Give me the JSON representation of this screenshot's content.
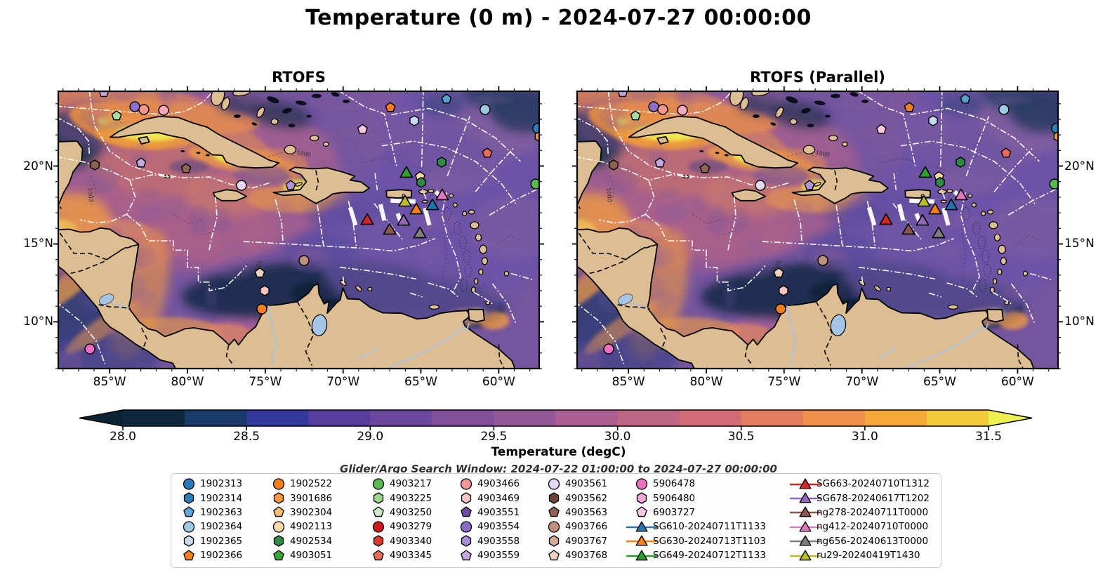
{
  "figure": {
    "title": "Temperature (0 m) - 2024-07-27 00:00:00",
    "background": "#ffffff"
  },
  "panels": [
    {
      "title": "RTOFS"
    },
    {
      "title": "RTOFS (Parallel)"
    }
  ],
  "map": {
    "extent": {
      "lon_min": -88.3,
      "lon_max": -57.4,
      "lat_min": 7.0,
      "lat_max": 24.8
    },
    "lon_ticks": [
      {
        "deg": -85,
        "label": "85°W"
      },
      {
        "deg": -80,
        "label": "80°W"
      },
      {
        "deg": -75,
        "label": "75°W"
      },
      {
        "deg": -70,
        "label": "70°W"
      },
      {
        "deg": -65,
        "label": "65°W"
      },
      {
        "deg": -60,
        "label": "60°W"
      }
    ],
    "lat_ticks": [
      {
        "deg": 20,
        "label": "20°N"
      },
      {
        "deg": 15,
        "label": "15°N"
      },
      {
        "deg": 10,
        "label": "10°N"
      }
    ],
    "colors": {
      "land": "#ddbe92",
      "lake_river": "#a5c4e6",
      "coastline": "#000000",
      "eez_boundary": "#ffffff",
      "sea_base": "#76559f",
      "contour": "#3a3a3a"
    },
    "contour_label": "1000"
  },
  "colorbar": {
    "label": "Temperature (degC)",
    "units": "degC",
    "vmin": 28.0,
    "vmax": 31.5,
    "step": 0.25,
    "tick_labels": [
      "28.0",
      "28.5",
      "29.0",
      "29.5",
      "30.0",
      "30.5",
      "31.0",
      "31.5"
    ],
    "under_color": "#0b2433",
    "over_color": "#edf04f",
    "segment_colors": [
      "#10293f",
      "#1a3a69",
      "#33399c",
      "#563d9e",
      "#6c479e",
      "#81509b",
      "#955897",
      "#aa5f92",
      "#bf6585",
      "#d26d75",
      "#e37d60",
      "#ef914b",
      "#f5a83a",
      "#f3ca3b"
    ]
  },
  "annotations": {
    "search_window": "Glider/Argo Search Window: 2024-07-22 01:00:00 to 2024-07-27 00:00:00"
  },
  "markers": {
    "argo": [
      {
        "shape": "pentagon",
        "color": "#c5a3e0",
        "lon": -85.37,
        "lat": 24.72
      },
      {
        "shape": "pentagon",
        "color": "#a8dfa0",
        "lon": -84.55,
        "lat": 23.22
      },
      {
        "shape": "circle",
        "color": "#8d6fc9",
        "lon": -83.38,
        "lat": 23.81
      },
      {
        "shape": "circle",
        "color": "#f2958d",
        "lon": -82.8,
        "lat": 23.63
      },
      {
        "shape": "circle",
        "color": "#f4a9b8",
        "lon": -81.53,
        "lat": 23.58
      },
      {
        "shape": "pentagon",
        "color": "#f57f20",
        "lon": -66.96,
        "lat": 23.76
      },
      {
        "shape": "hexagon",
        "color": "#c6dbef",
        "lon": -65.43,
        "lat": 22.91
      },
      {
        "shape": "pentagon",
        "color": "#5a9fd4",
        "lon": -63.36,
        "lat": 24.3
      },
      {
        "shape": "circle",
        "color": "#9ecae1",
        "lon": -60.88,
        "lat": 23.63
      },
      {
        "shape": "circle",
        "color": "#2d7fba",
        "lon": -57.5,
        "lat": 22.42
      },
      {
        "shape": "hexagon",
        "color": "#fb9a3c",
        "lon": -57.38,
        "lat": 21.9
      },
      {
        "shape": "pentagon",
        "color": "#f9c7e0",
        "lon": -68.75,
        "lat": 22.35
      },
      {
        "shape": "hexagon",
        "color": "#2c8b44",
        "lon": -63.67,
        "lat": 20.25
      },
      {
        "shape": "pentagon",
        "color": "#ef6a55",
        "lon": -60.74,
        "lat": 20.83
      },
      {
        "shape": "circle",
        "color": "#56bc4f",
        "lon": -57.62,
        "lat": 18.85
      },
      {
        "shape": "hexagon",
        "color": "#8d6253",
        "lon": -85.95,
        "lat": 20.07
      },
      {
        "shape": "pentagon",
        "color": "#c3abe2",
        "lon": -82.98,
        "lat": 20.2
      },
      {
        "shape": "pentagon",
        "color": "#926355",
        "lon": -80.09,
        "lat": 19.84
      },
      {
        "shape": "circle",
        "color": "#e4d7f2",
        "lon": -76.53,
        "lat": 18.76
      },
      {
        "shape": "pentagon",
        "color": "#b491dc",
        "lon": -73.37,
        "lat": 18.76
      },
      {
        "shape": "circle",
        "color": "#c08f7d",
        "lon": -72.51,
        "lat": 13.94
      },
      {
        "shape": "pentagon",
        "color": "#f2d3c3",
        "lon": -75.35,
        "lat": 13.13
      },
      {
        "shape": "hexagon",
        "color": "#fbc4c0",
        "lon": -75.04,
        "lat": 12.0
      },
      {
        "shape": "circle",
        "color": "#f57f20",
        "lon": -75.22,
        "lat": 10.83
      },
      {
        "shape": "circle",
        "color": "#ee6fc0",
        "lon": -86.27,
        "lat": 8.26
      },
      {
        "shape": "pentagon",
        "color": "#fdd9a6",
        "lon": -65.05,
        "lat": 19.32
      },
      {
        "shape": "hexagon",
        "color": "#2c8b44",
        "lon": -64.98,
        "lat": 18.95
      }
    ],
    "gliders": [
      {
        "name": "SG610",
        "color": "#1f77b4",
        "lon": -64.26,
        "lat": 17.36
      },
      {
        "name": "SG630",
        "color": "#ff7f0e",
        "lon": -65.3,
        "lat": 17.09
      },
      {
        "name": "SG649",
        "color": "#2ca02c",
        "lon": -65.93,
        "lat": 19.44
      },
      {
        "name": "SG663",
        "color": "#d62728",
        "lon": -68.45,
        "lat": 16.42
      },
      {
        "name": "SG678",
        "color": "#9467bd",
        "lon": -66.11,
        "lat": 16.37
      },
      {
        "name": "ng278",
        "color": "#8c564b",
        "lon": -67.01,
        "lat": 15.79
      },
      {
        "name": "ng412",
        "color": "#e377c2",
        "lon": -63.63,
        "lat": 18.0
      },
      {
        "name": "ng656",
        "color": "#7f7f7f",
        "lon": -65.07,
        "lat": 15.56
      },
      {
        "name": "ru29",
        "color": "#bcbd22",
        "lon": -66.02,
        "lat": 17.59
      }
    ],
    "glider_tracks": [
      [
        [
          -69.55,
          17.35
        ],
        [
          -69.2,
          16.2
        ]
      ],
      [
        [
          -67.6,
          17.55
        ],
        [
          -67.35,
          16.5
        ]
      ],
      [
        [
          -66.95,
          17.78
        ],
        [
          -65.35,
          17.72
        ]
      ],
      [
        [
          -64.75,
          17.3
        ],
        [
          -64.45,
          16.2
        ]
      ],
      [
        [
          -66.5,
          16.95
        ],
        [
          -66.2,
          16.2
        ]
      ],
      [
        [
          -64.05,
          18.35
        ],
        [
          -63.7,
          18.05
        ]
      ]
    ]
  },
  "legend": {
    "columns": [
      [
        {
          "id": "1902313",
          "shape": "circle",
          "color": "#2979b9"
        },
        {
          "id": "1902314",
          "shape": "hexagon",
          "color": "#2d7fba"
        },
        {
          "id": "1902363",
          "shape": "pentagon",
          "color": "#64a6d2"
        },
        {
          "id": "1902364",
          "shape": "circle",
          "color": "#9ecae1"
        },
        {
          "id": "1902365",
          "shape": "hexagon",
          "color": "#c6dbef"
        },
        {
          "id": "1902366",
          "shape": "pentagon",
          "color": "#f57f20"
        }
      ],
      [
        {
          "id": "1902522",
          "shape": "circle",
          "color": "#f57f20"
        },
        {
          "id": "3901686",
          "shape": "hexagon",
          "color": "#fb9a3c"
        },
        {
          "id": "3902304",
          "shape": "pentagon",
          "color": "#fdbf6f"
        },
        {
          "id": "4902113",
          "shape": "circle",
          "color": "#fdd9a6"
        },
        {
          "id": "4902534",
          "shape": "hexagon",
          "color": "#2c8b44"
        },
        {
          "id": "4903051",
          "shape": "pentagon",
          "color": "#39a639"
        }
      ],
      [
        {
          "id": "4903217",
          "shape": "circle",
          "color": "#56bc4f"
        },
        {
          "id": "4903225",
          "shape": "hexagon",
          "color": "#9cd88c"
        },
        {
          "id": "4903250",
          "shape": "pentagon",
          "color": "#c9ecc2"
        },
        {
          "id": "4903279",
          "shape": "circle",
          "color": "#cb181d"
        },
        {
          "id": "4903340",
          "shape": "hexagon",
          "color": "#dc3a2b"
        },
        {
          "id": "4903345",
          "shape": "pentagon",
          "color": "#ef6a55"
        }
      ],
      [
        {
          "id": "4903466",
          "shape": "circle",
          "color": "#f4949b"
        },
        {
          "id": "4903469",
          "shape": "hexagon",
          "color": "#fbc4c0"
        },
        {
          "id": "4903551",
          "shape": "pentagon",
          "color": "#6a51a3"
        },
        {
          "id": "4903554",
          "shape": "circle",
          "color": "#8a6bc5"
        },
        {
          "id": "4903558",
          "shape": "hexagon",
          "color": "#a98bd4"
        },
        {
          "id": "4903559",
          "shape": "pentagon",
          "color": "#c3abe2"
        }
      ],
      [
        {
          "id": "4903561",
          "shape": "circle",
          "color": "#e4d7f2"
        },
        {
          "id": "4903562",
          "shape": "hexagon",
          "color": "#6e4438"
        },
        {
          "id": "4903563",
          "shape": "pentagon",
          "color": "#926355"
        },
        {
          "id": "4903766",
          "shape": "circle",
          "color": "#c08f7d"
        },
        {
          "id": "4903767",
          "shape": "hexagon",
          "color": "#d8ab97"
        },
        {
          "id": "4903768",
          "shape": "pentagon",
          "color": "#f2d3c3"
        }
      ],
      [
        {
          "id": "5906478",
          "shape": "circle",
          "color": "#ee6fc0"
        },
        {
          "id": "5906480",
          "shape": "hexagon",
          "color": "#f4a6d7"
        },
        {
          "id": "6903727",
          "shape": "pentagon",
          "color": "#f9c7e0"
        },
        {
          "id": "SG610-20240711T1133",
          "shape": "glider",
          "color": "#1f77b4"
        },
        {
          "id": "SG630-20240713T1103",
          "shape": "glider",
          "color": "#ff7f0e"
        },
        {
          "id": "SG649-20240712T1133",
          "shape": "glider",
          "color": "#2ca02c"
        }
      ],
      [
        {
          "id": "SG663-20240710T1312",
          "shape": "glider",
          "color": "#d62728"
        },
        {
          "id": "SG678-20240617T1202",
          "shape": "glider",
          "color": "#9467bd"
        },
        {
          "id": "ng278-20240711T0000",
          "shape": "glider",
          "color": "#8c564b"
        },
        {
          "id": "ng412-20240710T0000",
          "shape": "glider",
          "color": "#e377c2"
        },
        {
          "id": "ng656-20240613T0000",
          "shape": "glider",
          "color": "#7f7f7f"
        },
        {
          "id": "ru29-20240419T1430",
          "shape": "glider",
          "color": "#bcbd22"
        }
      ]
    ]
  }
}
